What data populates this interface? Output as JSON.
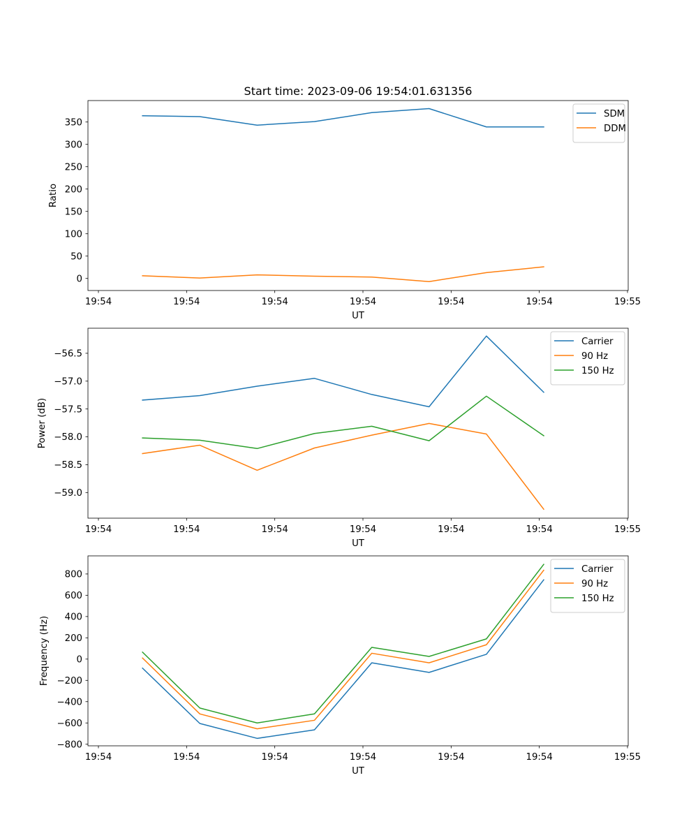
{
  "chart_data": [
    {
      "type": "line",
      "title": "Start time: 2023-09-06 19:54:01.631356",
      "xlabel": "UT",
      "ylabel": "Ratio",
      "xlim": [
        0,
        6
      ],
      "ylim": [
        -27,
        398
      ],
      "x_ticks": [
        {
          "v": 0.0,
          "label": "19:54"
        },
        {
          "v": 1.0,
          "label": "19:54"
        },
        {
          "v": 2.0,
          "label": "19:54"
        },
        {
          "v": 3.0,
          "label": "19:54"
        },
        {
          "v": 4.0,
          "label": "19:54"
        },
        {
          "v": 5.0,
          "label": "19:54"
        },
        {
          "v": 6.0,
          "label": "19:55"
        }
      ],
      "y_ticks": [
        {
          "v": 0,
          "label": "0"
        },
        {
          "v": 50,
          "label": "50"
        },
        {
          "v": 100,
          "label": "100"
        },
        {
          "v": 150,
          "label": "150"
        },
        {
          "v": 200,
          "label": "200"
        },
        {
          "v": 250,
          "label": "250"
        },
        {
          "v": 300,
          "label": "300"
        },
        {
          "v": 350,
          "label": "350"
        }
      ],
      "legend_position": "top-right",
      "x": [
        0.5,
        1.15,
        1.8,
        2.45,
        3.1,
        3.75,
        4.4,
        5.05
      ],
      "series": [
        {
          "name": "SDM",
          "color": "#1f77b4",
          "values": [
            364,
            362,
            343,
            351,
            371,
            380,
            339,
            339
          ]
        },
        {
          "name": "DDM",
          "color": "#ff7f0e",
          "values": [
            6,
            1,
            8,
            5,
            3,
            -7,
            13,
            26
          ]
        }
      ]
    },
    {
      "type": "line",
      "title": "",
      "xlabel": "UT",
      "ylabel": "Power (dB)",
      "xlim": [
        0,
        6
      ],
      "ylim": [
        -59.46,
        -56.05
      ],
      "x_ticks": [
        {
          "v": 0.0,
          "label": "19:54"
        },
        {
          "v": 1.0,
          "label": "19:54"
        },
        {
          "v": 2.0,
          "label": "19:54"
        },
        {
          "v": 3.0,
          "label": "19:54"
        },
        {
          "v": 4.0,
          "label": "19:54"
        },
        {
          "v": 5.0,
          "label": "19:54"
        },
        {
          "v": 6.0,
          "label": "19:55"
        }
      ],
      "y_ticks": [
        {
          "v": -59.0,
          "label": "−59.0"
        },
        {
          "v": -58.5,
          "label": "−58.5"
        },
        {
          "v": -58.0,
          "label": "−58.0"
        },
        {
          "v": -57.5,
          "label": "−57.5"
        },
        {
          "v": -57.0,
          "label": "−57.0"
        },
        {
          "v": -56.5,
          "label": "−56.5"
        }
      ],
      "legend_position": "top-right",
      "x": [
        0.5,
        1.15,
        1.8,
        2.45,
        3.1,
        3.75,
        4.4,
        5.05
      ],
      "series": [
        {
          "name": "Carrier",
          "color": "#1f77b4",
          "values": [
            -57.34,
            -57.26,
            -57.09,
            -56.95,
            -57.24,
            -57.46,
            -56.19,
            -57.2
          ]
        },
        {
          "name": "90 Hz",
          "color": "#ff7f0e",
          "values": [
            -58.3,
            -58.15,
            -58.6,
            -58.2,
            -57.97,
            -57.76,
            -57.95,
            -59.3
          ]
        },
        {
          "name": "150 Hz",
          "color": "#2ca02c",
          "values": [
            -58.02,
            -58.06,
            -58.21,
            -57.94,
            -57.81,
            -58.07,
            -57.27,
            -57.98
          ]
        }
      ]
    },
    {
      "type": "line",
      "title": "",
      "xlabel": "UT",
      "ylabel": "Frequency (Hz)",
      "xlim": [
        0,
        6
      ],
      "ylim": [
        -815,
        970
      ],
      "x_ticks": [
        {
          "v": 0.0,
          "label": "19:54"
        },
        {
          "v": 1.0,
          "label": "19:54"
        },
        {
          "v": 2.0,
          "label": "19:54"
        },
        {
          "v": 3.0,
          "label": "19:54"
        },
        {
          "v": 4.0,
          "label": "19:54"
        },
        {
          "v": 5.0,
          "label": "19:54"
        },
        {
          "v": 6.0,
          "label": "19:55"
        }
      ],
      "y_ticks": [
        {
          "v": -800,
          "label": "−800"
        },
        {
          "v": -600,
          "label": "−600"
        },
        {
          "v": -400,
          "label": "−400"
        },
        {
          "v": -200,
          "label": "−200"
        },
        {
          "v": 0,
          "label": "0"
        },
        {
          "v": 200,
          "label": "200"
        },
        {
          "v": 400,
          "label": "400"
        },
        {
          "v": 600,
          "label": "600"
        },
        {
          "v": 800,
          "label": "800"
        }
      ],
      "legend_position": "top-right",
      "x": [
        0.5,
        1.15,
        1.8,
        2.45,
        3.1,
        3.75,
        4.4,
        5.05
      ],
      "series": [
        {
          "name": "Carrier",
          "color": "#1f77b4",
          "values": [
            -85,
            -605,
            -745,
            -665,
            -35,
            -125,
            45,
            745
          ]
        },
        {
          "name": "90 Hz",
          "color": "#ff7f0e",
          "values": [
            10,
            -515,
            -655,
            -575,
            55,
            -35,
            135,
            835
          ]
        },
        {
          "name": "150 Hz",
          "color": "#2ca02c",
          "values": [
            65,
            -460,
            -600,
            -515,
            110,
            25,
            190,
            890
          ]
        }
      ]
    }
  ]
}
